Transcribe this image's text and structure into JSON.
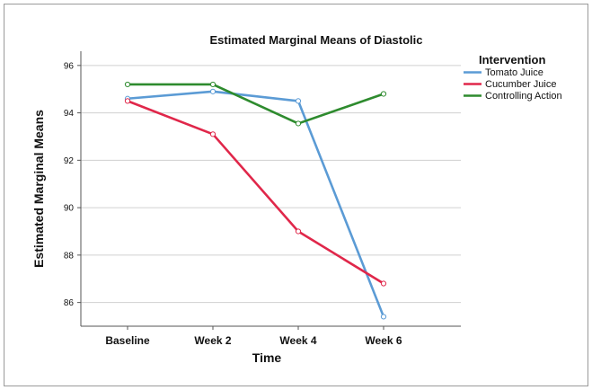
{
  "chart_data": {
    "type": "line",
    "title": "Estimated Marginal Means of Diastolic",
    "xlabel": "Time",
    "ylabel": "Estimated Marginal Means",
    "categories": [
      "Baseline",
      "Week 2",
      "Week 4",
      "Week 6"
    ],
    "y_ticks": [
      "86",
      "88",
      "90",
      "92",
      "94",
      "96"
    ],
    "ylim": [
      85.0,
      96.6
    ],
    "grid": true,
    "legend_title": "Intervention",
    "legend_position": "top-right",
    "series": [
      {
        "name": "Tomato Juice",
        "color": "#5b9bd5",
        "values": [
          94.6,
          94.9,
          94.5,
          85.4
        ]
      },
      {
        "name": "Cucumber Juice",
        "color": "#e0274a",
        "values": [
          94.5,
          93.1,
          89.0,
          86.8
        ]
      },
      {
        "name": "Controlling Action",
        "color": "#2e8b2e",
        "values": [
          95.2,
          95.2,
          93.55,
          94.8
        ]
      }
    ]
  }
}
